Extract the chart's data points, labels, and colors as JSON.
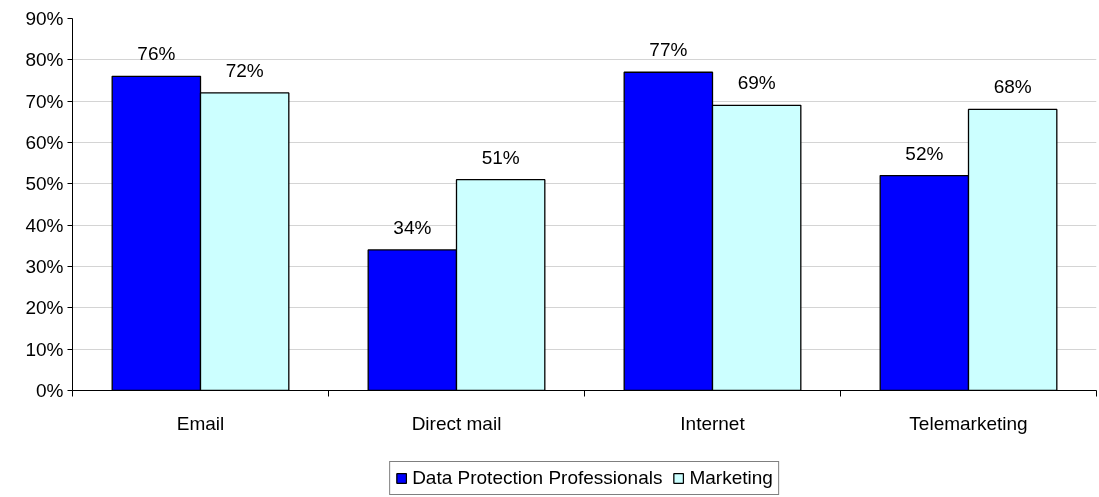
{
  "chart_data": {
    "type": "bar",
    "categories": [
      "Email",
      "Direct mail",
      "Internet",
      "Telemarketing"
    ],
    "series": [
      {
        "name": "Data Protection Professionals",
        "color": "#0000ff",
        "values": [
          76,
          34,
          77,
          52
        ],
        "value_labels": [
          "76%",
          "34%",
          "77%",
          "52%"
        ]
      },
      {
        "name": "Marketing",
        "color": "#ccffff",
        "values": [
          72,
          51,
          69,
          68
        ],
        "value_labels": [
          "72%",
          "51%",
          "69%",
          "68%"
        ]
      }
    ],
    "ylim": [
      0,
      90
    ],
    "yticks": [
      {
        "value": 0,
        "label": "0%"
      },
      {
        "value": 10,
        "label": "10%"
      },
      {
        "value": 20,
        "label": "20%"
      },
      {
        "value": 30,
        "label": "30%"
      },
      {
        "value": 40,
        "label": "40%"
      },
      {
        "value": 50,
        "label": "50%"
      },
      {
        "value": 60,
        "label": "60%"
      },
      {
        "value": 70,
        "label": "70%"
      },
      {
        "value": 80,
        "label": "80%"
      },
      {
        "value": 90,
        "label": "90%"
      }
    ],
    "grid": "y",
    "legend": "bottom"
  }
}
